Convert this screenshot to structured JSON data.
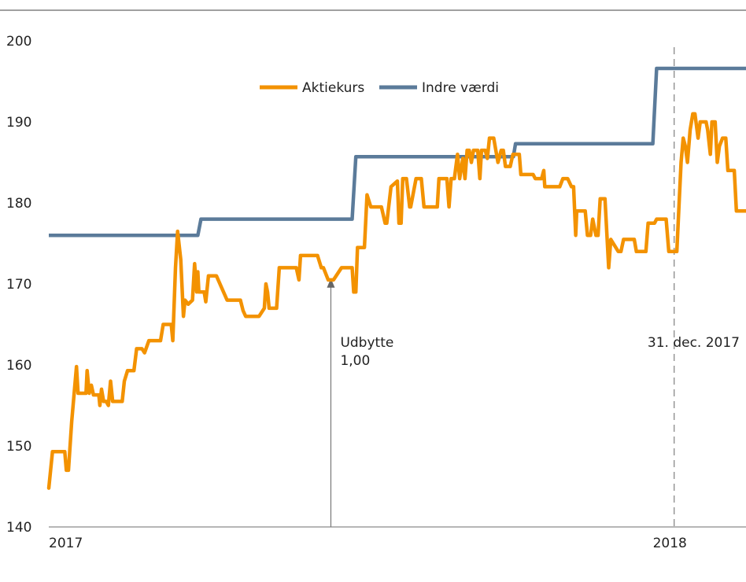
{
  "chart_data": {
    "type": "line",
    "title": "",
    "xlabel": "",
    "ylabel": "",
    "ylim": [
      140,
      200
    ],
    "y_ticks": [
      "140",
      "150",
      "160",
      "170",
      "180",
      "190",
      "200"
    ],
    "x_tick_labels": [
      {
        "label": "2017",
        "x": 0
      },
      {
        "label": "2018",
        "x": 12
      }
    ],
    "xlim": [
      0,
      13.1
    ],
    "grid": false,
    "legend_position": "top-center",
    "colors": {
      "aktiekurs": "#F39200",
      "indre_vaerdi": "#5B7B9A",
      "axis": "#8A8A8A",
      "divider": "#A0A0A0"
    },
    "series": [
      {
        "name": "Aktiekurs",
        "color": "#F39200",
        "points": [
          [
            0.0,
            144.8
          ],
          [
            0.07,
            149.3
          ],
          [
            0.3,
            149.3
          ],
          [
            0.33,
            147
          ],
          [
            0.37,
            147
          ],
          [
            0.43,
            153
          ],
          [
            0.52,
            159.8
          ],
          [
            0.55,
            156.5
          ],
          [
            0.7,
            156.5
          ],
          [
            0.72,
            159.3
          ],
          [
            0.76,
            156.5
          ],
          [
            0.8,
            157.5
          ],
          [
            0.84,
            156.3
          ],
          [
            0.94,
            156.3
          ],
          [
            0.96,
            155
          ],
          [
            0.99,
            157
          ],
          [
            1.03,
            155.5
          ],
          [
            1.08,
            155.5
          ],
          [
            1.12,
            155
          ],
          [
            1.16,
            158
          ],
          [
            1.2,
            155.5
          ],
          [
            1.38,
            155.5
          ],
          [
            1.42,
            158
          ],
          [
            1.48,
            159.3
          ],
          [
            1.6,
            159.3
          ],
          [
            1.65,
            162
          ],
          [
            1.75,
            162
          ],
          [
            1.8,
            161.5
          ],
          [
            1.88,
            163
          ],
          [
            2.1,
            163
          ],
          [
            2.15,
            165
          ],
          [
            2.3,
            165
          ],
          [
            2.33,
            163
          ],
          [
            2.38,
            172
          ],
          [
            2.42,
            176.5
          ],
          [
            2.48,
            173
          ],
          [
            2.53,
            166
          ],
          [
            2.56,
            168
          ],
          [
            2.62,
            167.5
          ],
          [
            2.7,
            168
          ],
          [
            2.74,
            172.5
          ],
          [
            2.78,
            169
          ],
          [
            2.8,
            171.5
          ],
          [
            2.82,
            169
          ],
          [
            2.92,
            169
          ],
          [
            2.95,
            167.8
          ],
          [
            3.0,
            171
          ],
          [
            3.15,
            171
          ],
          [
            3.35,
            168
          ],
          [
            3.6,
            168
          ],
          [
            3.65,
            166.7
          ],
          [
            3.7,
            166
          ],
          [
            3.95,
            166
          ],
          [
            4.05,
            167
          ],
          [
            4.08,
            170
          ],
          [
            4.11,
            169
          ],
          [
            4.14,
            167
          ],
          [
            4.28,
            167
          ],
          [
            4.33,
            172
          ],
          [
            4.65,
            172
          ],
          [
            4.7,
            170.5
          ],
          [
            4.73,
            173.5
          ],
          [
            5.05,
            173.5
          ],
          [
            5.12,
            172
          ],
          [
            5.16,
            172
          ],
          [
            5.25,
            170.5
          ],
          [
            5.35,
            170.5
          ],
          [
            5.5,
            172
          ],
          [
            5.7,
            172
          ],
          [
            5.73,
            169
          ],
          [
            5.77,
            169
          ],
          [
            5.8,
            174.5
          ],
          [
            5.93,
            174.5
          ],
          [
            5.98,
            181
          ],
          [
            6.05,
            179.5
          ],
          [
            6.25,
            179.5
          ],
          [
            6.32,
            177.5
          ],
          [
            6.35,
            177.5
          ],
          [
            6.43,
            182
          ],
          [
            6.55,
            182.7
          ],
          [
            6.58,
            177.5
          ],
          [
            6.62,
            177.5
          ],
          [
            6.65,
            183
          ],
          [
            6.72,
            183
          ],
          [
            6.78,
            179.5
          ],
          [
            6.8,
            179.5
          ],
          [
            6.9,
            183
          ],
          [
            7.0,
            183
          ],
          [
            7.05,
            179.5
          ],
          [
            7.3,
            179.5
          ],
          [
            7.33,
            183
          ],
          [
            7.48,
            183
          ],
          [
            7.52,
            179.5
          ],
          [
            7.56,
            183
          ],
          [
            7.62,
            183
          ],
          [
            7.68,
            186
          ],
          [
            7.72,
            183
          ],
          [
            7.78,
            185.5
          ],
          [
            7.82,
            183
          ],
          [
            7.86,
            186.5
          ],
          [
            7.9,
            186.5
          ],
          [
            7.94,
            185
          ],
          [
            7.98,
            186.5
          ],
          [
            8.06,
            186.5
          ],
          [
            8.1,
            183
          ],
          [
            8.13,
            186.5
          ],
          [
            8.2,
            186.5
          ],
          [
            8.24,
            185.5
          ],
          [
            8.28,
            188
          ],
          [
            8.36,
            188
          ],
          [
            8.4,
            186.5
          ],
          [
            8.44,
            185
          ],
          [
            8.5,
            186.5
          ],
          [
            8.54,
            186.5
          ],
          [
            8.58,
            184.5
          ],
          [
            8.67,
            184.5
          ],
          [
            8.72,
            186
          ],
          [
            8.84,
            186
          ],
          [
            8.87,
            183.5
          ],
          [
            8.96,
            183.5
          ],
          [
            9.0,
            183.5
          ],
          [
            9.1,
            183.5
          ],
          [
            9.14,
            183
          ],
          [
            9.26,
            183
          ],
          [
            9.3,
            184
          ],
          [
            9.32,
            182
          ],
          [
            9.6,
            182
          ],
          [
            9.66,
            183
          ],
          [
            9.75,
            183
          ],
          [
            9.82,
            182
          ],
          [
            9.86,
            182
          ],
          [
            9.9,
            176
          ],
          [
            9.92,
            179
          ],
          [
            10.08,
            179
          ],
          [
            10.12,
            176
          ],
          [
            10.18,
            176
          ],
          [
            10.22,
            178
          ],
          [
            10.28,
            176
          ],
          [
            10.32,
            176
          ],
          [
            10.36,
            180.5
          ],
          [
            10.45,
            180.5
          ],
          [
            10.52,
            172
          ],
          [
            10.56,
            175.5
          ],
          [
            10.7,
            174
          ],
          [
            10.75,
            174
          ],
          [
            10.8,
            175.5
          ],
          [
            11.0,
            175.5
          ],
          [
            11.04,
            174
          ],
          [
            11.22,
            174
          ],
          [
            11.26,
            177.5
          ],
          [
            11.38,
            177.5
          ],
          [
            11.42,
            178
          ],
          [
            11.6,
            178
          ],
          [
            11.65,
            174
          ],
          [
            11.8,
            174
          ],
          [
            11.85,
            181
          ],
          [
            11.88,
            185
          ],
          [
            11.92,
            188
          ],
          [
            11.96,
            187
          ],
          [
            12.0,
            185
          ],
          [
            12.05,
            189
          ],
          [
            12.1,
            191
          ],
          [
            12.14,
            191
          ],
          [
            12.2,
            188
          ],
          [
            12.24,
            190
          ],
          [
            12.35,
            190
          ],
          [
            12.38,
            189
          ],
          [
            12.43,
            186
          ],
          [
            12.46,
            190
          ],
          [
            12.52,
            190
          ],
          [
            12.56,
            185
          ],
          [
            12.6,
            187
          ],
          [
            12.66,
            188
          ],
          [
            12.72,
            188
          ],
          [
            12.76,
            184
          ],
          [
            12.88,
            184
          ],
          [
            12.92,
            179
          ],
          [
            13.1,
            179
          ]
        ]
      },
      {
        "name": "Indre værdi",
        "color": "#5B7B9A",
        "points": [
          [
            0.0,
            176
          ],
          [
            2.8,
            176
          ],
          [
            2.86,
            178
          ],
          [
            5.7,
            178
          ],
          [
            5.77,
            185.7
          ],
          [
            8.73,
            185.7
          ],
          [
            8.77,
            187.3
          ],
          [
            11.35,
            187.3
          ],
          [
            11.42,
            196.6
          ],
          [
            13.1,
            196.6
          ]
        ]
      }
    ],
    "annotations": [
      {
        "name": "dividend",
        "lines": [
          "Udbytte",
          "1,00"
        ],
        "x": 5.3,
        "y": 171
      },
      {
        "name": "year-end",
        "label": "31. dec. 2017",
        "x": 11.75
      }
    ]
  }
}
